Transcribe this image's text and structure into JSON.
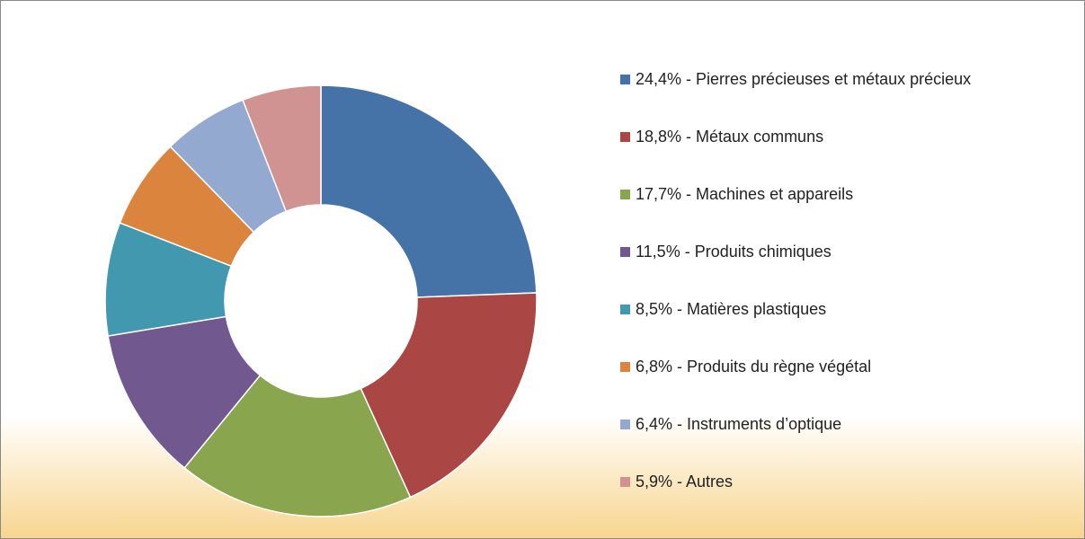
{
  "chart_data": {
    "type": "donut",
    "categories": [
      "24,4% - Pierres précieuses et métaux précieux",
      "18,8% - Métaux communs",
      "17,7% - Machines et appareils",
      "11,5% - Produits chimiques",
      "8,5% - Matières plastiques",
      "6,8% - Produits du règne végétal",
      "6,4% - Instruments d’optique",
      "5,9% - Autres"
    ],
    "values": [
      24.4,
      18.8,
      17.7,
      11.5,
      8.5,
      6.8,
      6.4,
      5.9
    ],
    "colors": [
      "#4572a7",
      "#aa4643",
      "#89a54e",
      "#71588f",
      "#4198af",
      "#db843d",
      "#93a9cf",
      "#d19392"
    ],
    "legend": "right"
  }
}
